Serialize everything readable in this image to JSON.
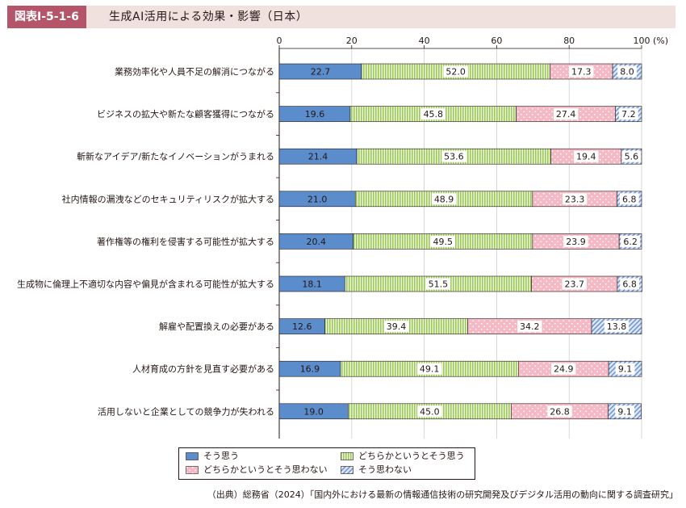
{
  "header": {
    "figure_number": "図表Ⅰ-5-1-6",
    "title": "生成AI活用による効果・影響（日本）"
  },
  "chart_data": {
    "type": "bar",
    "orientation": "horizontal",
    "stacked": true,
    "xlim": [
      0,
      100
    ],
    "xticks": [
      "0",
      "20",
      "40",
      "60",
      "80",
      "100"
    ],
    "x_unit": "(%)",
    "categories": [
      "業務効率化や人員不足の解消につながる",
      "ビジネスの拡大や新たな顧客獲得につながる",
      "斬新なアイデア/新たなイノベーションがうまれる",
      "社内情報の漏洩などのセキュリティリスクが拡大する",
      "著作権等の権利を侵害する可能性が拡大する",
      "生成物に倫理上不適切な内容や偏見が含まれる可能性が拡大する",
      "解雇や配置換えの必要がある",
      "人材育成の方針を見直す必要がある",
      "活用しないと企業としての競争力が失われる"
    ],
    "series": [
      {
        "name": "そう思う",
        "color": "#5b8ccb",
        "pattern": "solid",
        "values": [
          22.7,
          19.6,
          21.4,
          21.0,
          20.4,
          18.1,
          12.6,
          16.9,
          19.0
        ]
      },
      {
        "name": "どちらかというとそう思う",
        "color": "#a7cf5a",
        "pattern": "vertical-stripes",
        "values": [
          52.0,
          45.8,
          53.6,
          48.9,
          49.5,
          51.5,
          39.4,
          49.1,
          45.0
        ]
      },
      {
        "name": "どちらかというとそう思わない",
        "color": "#f4b6c2",
        "pattern": "dots",
        "values": [
          17.3,
          27.4,
          19.4,
          23.3,
          23.9,
          23.7,
          34.2,
          24.9,
          26.8
        ]
      },
      {
        "name": "そう思わない",
        "color": "#8fb0e0",
        "pattern": "diagonal-stripes",
        "values": [
          8.0,
          7.2,
          5.6,
          6.8,
          6.2,
          6.8,
          13.8,
          9.1,
          9.1
        ]
      }
    ],
    "legend_position": "bottom"
  },
  "source": "（出典）総務省（2024）「国内外における最新の情報通信技術の研究開発及びデジタル活用の動向に関する調査研究」"
}
